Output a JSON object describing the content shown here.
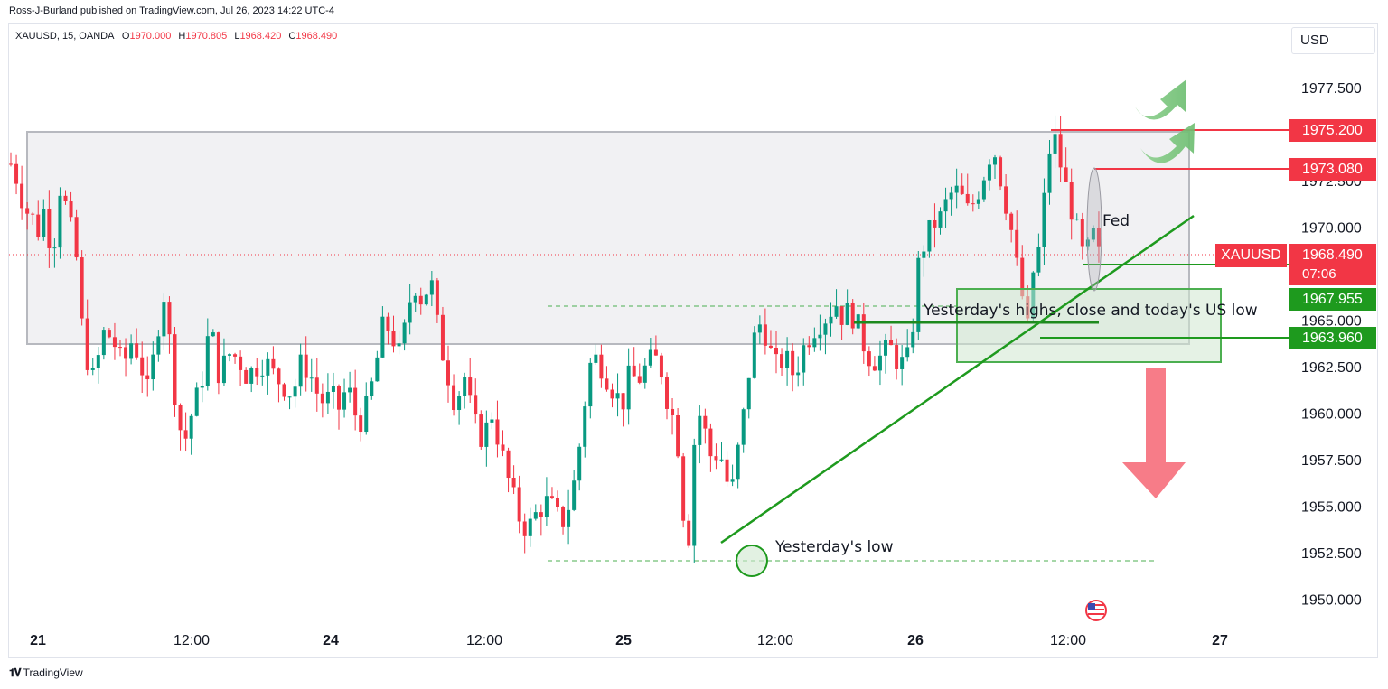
{
  "header": {
    "publisher": "Ross-J-Burland published on TradingView.com, Jul 26, 2023 14:22 UTC-4"
  },
  "legend": {
    "symbol": "XAUUSD, 15, OANDA",
    "o_label": "O",
    "o_value": "1970.000",
    "h_label": "H",
    "h_value": "1970.805",
    "l_label": "L",
    "l_value": "1968.420",
    "c_label": "C",
    "c_value": "1968.490"
  },
  "currency_button": "USD",
  "price_tags": {
    "level1": "1975.200",
    "level2": "1973.080",
    "symbol_label": "XAUUSD",
    "last_price": "1968.490",
    "countdown": "07:06",
    "level3": "1967.955",
    "level4": "1963.960"
  },
  "annotations": {
    "fed": "Fed",
    "range_note": "Yesterday's highs, close and today's US low",
    "low_note": "Yesterday's low"
  },
  "branding": {
    "logo": "TradingView"
  },
  "colors": {
    "up": "#089981",
    "down": "#f23645",
    "resistance": "#f23645",
    "support": "#1e9a1e",
    "trendline": "#1e9a1e",
    "arrow_up": "#7bc47f",
    "arrow_down": "#f77c88",
    "zone": "#e9e9ec"
  },
  "chart_data": {
    "type": "candlestick",
    "symbol": "XAUUSD",
    "timeframe": "15",
    "broker": "OANDA",
    "y_axis": {
      "ylim": [
        1948.5,
        1979.5
      ],
      "ticks": [
        "1977.500",
        "1972.500",
        "1970.000",
        "1965.000",
        "1962.500",
        "1960.000",
        "1957.500",
        "1955.000",
        "1952.500",
        "1950.000"
      ]
    },
    "x_axis": {
      "ticks": [
        "21",
        "12:00",
        "24",
        "12:00",
        "25",
        "12:00",
        "26",
        "12:00",
        "27"
      ]
    },
    "last_price": 1968.49,
    "horizontal_levels": [
      1975.2,
      1973.08,
      1967.955,
      1963.96
    ],
    "range_box": {
      "top": 1975.2,
      "bottom": 1963.96
    },
    "support_zone": {
      "top": 1966.0,
      "bottom": 1962.8
    },
    "dashed_levels": [
      1966.3,
      1952.0
    ],
    "path": [
      [
        0,
        1973.4
      ],
      [
        6,
        1972.5
      ],
      [
        12,
        1971.0
      ],
      [
        18,
        1970.6
      ],
      [
        24,
        1969.8
      ],
      [
        30,
        1971.2
      ],
      [
        36,
        1968.2
      ],
      [
        44,
        1972.7
      ],
      [
        50,
        1970.2
      ],
      [
        56,
        1969.4
      ],
      [
        60,
        1966.0
      ],
      [
        64,
        1963.5
      ],
      [
        72,
        1961.8
      ],
      [
        82,
        1964.5
      ],
      [
        90,
        1963.8
      ],
      [
        98,
        1962.5
      ],
      [
        106,
        1964.0
      ],
      [
        112,
        1963.0
      ],
      [
        120,
        1961.0
      ],
      [
        128,
        1964.5
      ],
      [
        134,
        1966.5
      ],
      [
        140,
        1963.0
      ],
      [
        146,
        1959.5
      ],
      [
        152,
        1958.5
      ],
      [
        158,
        1960.0
      ],
      [
        166,
        1961.5
      ],
      [
        174,
        1964.8
      ],
      [
        182,
        1962.0
      ],
      [
        190,
        1963.2
      ],
      [
        198,
        1963.0
      ],
      [
        206,
        1962.0
      ],
      [
        214,
        1962.5
      ],
      [
        222,
        1962.8
      ],
      [
        230,
        1962.0
      ],
      [
        238,
        1961.5
      ],
      [
        246,
        1961.0
      ],
      [
        254,
        1962.8
      ],
      [
        262,
        1962.0
      ],
      [
        268,
        1961.0
      ],
      [
        274,
        1960.5
      ],
      [
        280,
        1961.0
      ],
      [
        286,
        1960.2
      ],
      [
        294,
        1961.5
      ],
      [
        300,
        1960.0
      ],
      [
        306,
        1959.6
      ],
      [
        312,
        1960.5
      ],
      [
        320,
        1963.0
      ],
      [
        326,
        1965.0
      ],
      [
        334,
        1964.0
      ],
      [
        340,
        1963.0
      ],
      [
        348,
        1966.0
      ],
      [
        354,
        1967.0
      ],
      [
        360,
        1965.8
      ],
      [
        366,
        1967.5
      ],
      [
        374,
        1964.0
      ],
      [
        380,
        1962.5
      ],
      [
        388,
        1960.5
      ],
      [
        396,
        1962.0
      ],
      [
        404,
        1959.5
      ],
      [
        412,
        1958.6
      ],
      [
        420,
        1960.0
      ],
      [
        428,
        1958.0
      ],
      [
        434,
        1956.5
      ],
      [
        440,
        1955.2
      ],
      [
        446,
        1954.0
      ],
      [
        452,
        1953.8
      ],
      [
        458,
        1954.5
      ],
      [
        464,
        1955.0
      ],
      [
        470,
        1955.3
      ],
      [
        476,
        1954.5
      ],
      [
        482,
        1954.2
      ],
      [
        490,
        1955.5
      ],
      [
        496,
        1958.0
      ],
      [
        502,
        1961.0
      ],
      [
        506,
        1962.6
      ],
      [
        512,
        1963.0
      ],
      [
        520,
        1962.0
      ],
      [
        528,
        1961.0
      ],
      [
        534,
        1960.5
      ],
      [
        540,
        1962.0
      ],
      [
        548,
        1961.8
      ],
      [
        556,
        1962.6
      ],
      [
        562,
        1963.0
      ],
      [
        568,
        1962.3
      ],
      [
        574,
        1960.5
      ],
      [
        580,
        1959.4
      ],
      [
        584,
        1957.5
      ],
      [
        588,
        1954.0
      ],
      [
        592,
        1953.4
      ],
      [
        596,
        1958.0
      ],
      [
        600,
        1960.2
      ],
      [
        606,
        1959.0
      ],
      [
        612,
        1957.5
      ],
      [
        618,
        1958.0
      ],
      [
        624,
        1957.0
      ],
      [
        628,
        1955.0
      ],
      [
        632,
        1957.0
      ],
      [
        638,
        1959.0
      ],
      [
        644,
        1962.0
      ],
      [
        650,
        1964.3
      ],
      [
        656,
        1965.0
      ],
      [
        662,
        1963.5
      ],
      [
        668,
        1962.5
      ],
      [
        676,
        1963.0
      ],
      [
        684,
        1962.0
      ],
      [
        692,
        1963.5
      ],
      [
        700,
        1964.5
      ],
      [
        708,
        1965.0
      ],
      [
        714,
        1965.3
      ],
      [
        720,
        1966.0
      ],
      [
        726,
        1965.2
      ],
      [
        732,
        1965.5
      ],
      [
        738,
        1965.0
      ],
      [
        744,
        1963.8
      ],
      [
        750,
        1963.0
      ],
      [
        756,
        1962.8
      ],
      [
        762,
        1963.2
      ],
      [
        768,
        1963.5
      ],
      [
        774,
        1962.8
      ],
      [
        780,
        1962.6
      ],
      [
        786,
        1963.2
      ],
      [
        790,
        1967.0
      ],
      [
        794,
        1968.5
      ],
      [
        800,
        1969.5
      ],
      [
        806,
        1970.2
      ],
      [
        812,
        1970.5
      ],
      [
        818,
        1971.5
      ],
      [
        824,
        1972.0
      ],
      [
        830,
        1971.6
      ],
      [
        836,
        1970.8
      ],
      [
        842,
        1971.5
      ],
      [
        848,
        1972.5
      ],
      [
        854,
        1973.8
      ],
      [
        860,
        1974.0
      ],
      [
        866,
        1972.0
      ],
      [
        872,
        1970.5
      ],
      [
        878,
        1968.0
      ],
      [
        884,
        1966.0
      ],
      [
        888,
        1964.5
      ],
      [
        892,
        1967.5
      ],
      [
        896,
        1968.0
      ],
      [
        900,
        1970.0
      ],
      [
        906,
        1973.8
      ],
      [
        910,
        1975.2
      ],
      [
        914,
        1974.0
      ],
      [
        920,
        1972.5
      ],
      [
        926,
        1971.0
      ],
      [
        932,
        1969.5
      ],
      [
        938,
        1968.0
      ],
      [
        944,
        1969.8
      ],
      [
        950,
        1968.49
      ]
    ]
  }
}
